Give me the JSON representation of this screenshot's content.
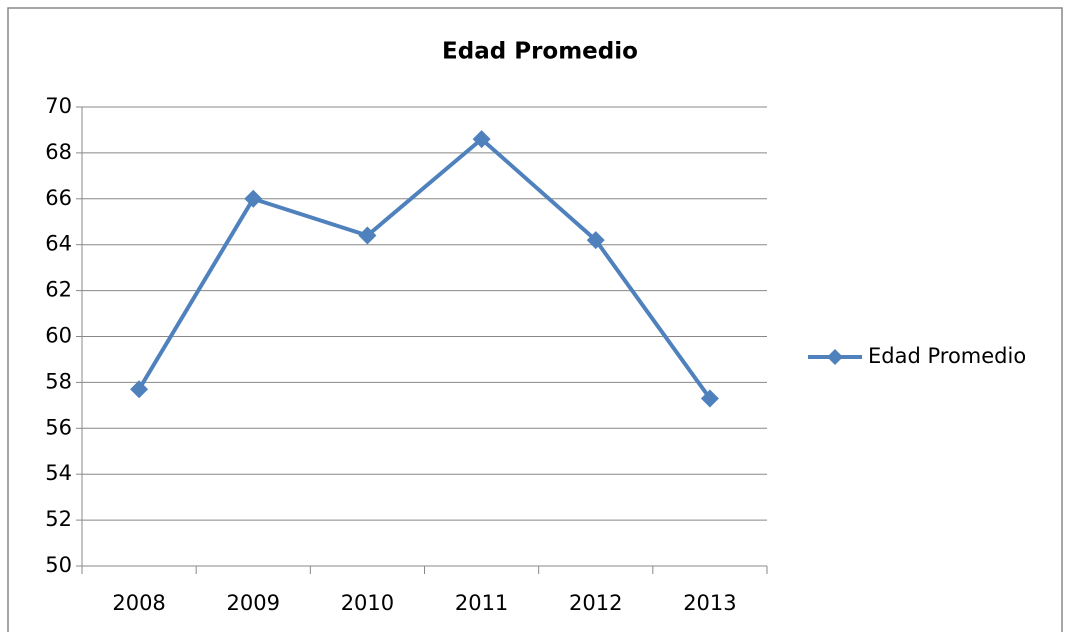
{
  "chart_data": {
    "type": "line",
    "title": "Edad Promedio",
    "categories": [
      "2008",
      "2009",
      "2010",
      "2011",
      "2012",
      "2013"
    ],
    "series": [
      {
        "name": "Edad Promedio",
        "color": "#4f81bd",
        "values": [
          57.7,
          66.0,
          64.4,
          68.6,
          64.2,
          57.3
        ]
      }
    ],
    "ylim": [
      50,
      70
    ],
    "yticks": [
      50,
      52,
      54,
      56,
      58,
      60,
      62,
      64,
      66,
      68,
      70
    ],
    "grid": true,
    "legend": "right"
  }
}
